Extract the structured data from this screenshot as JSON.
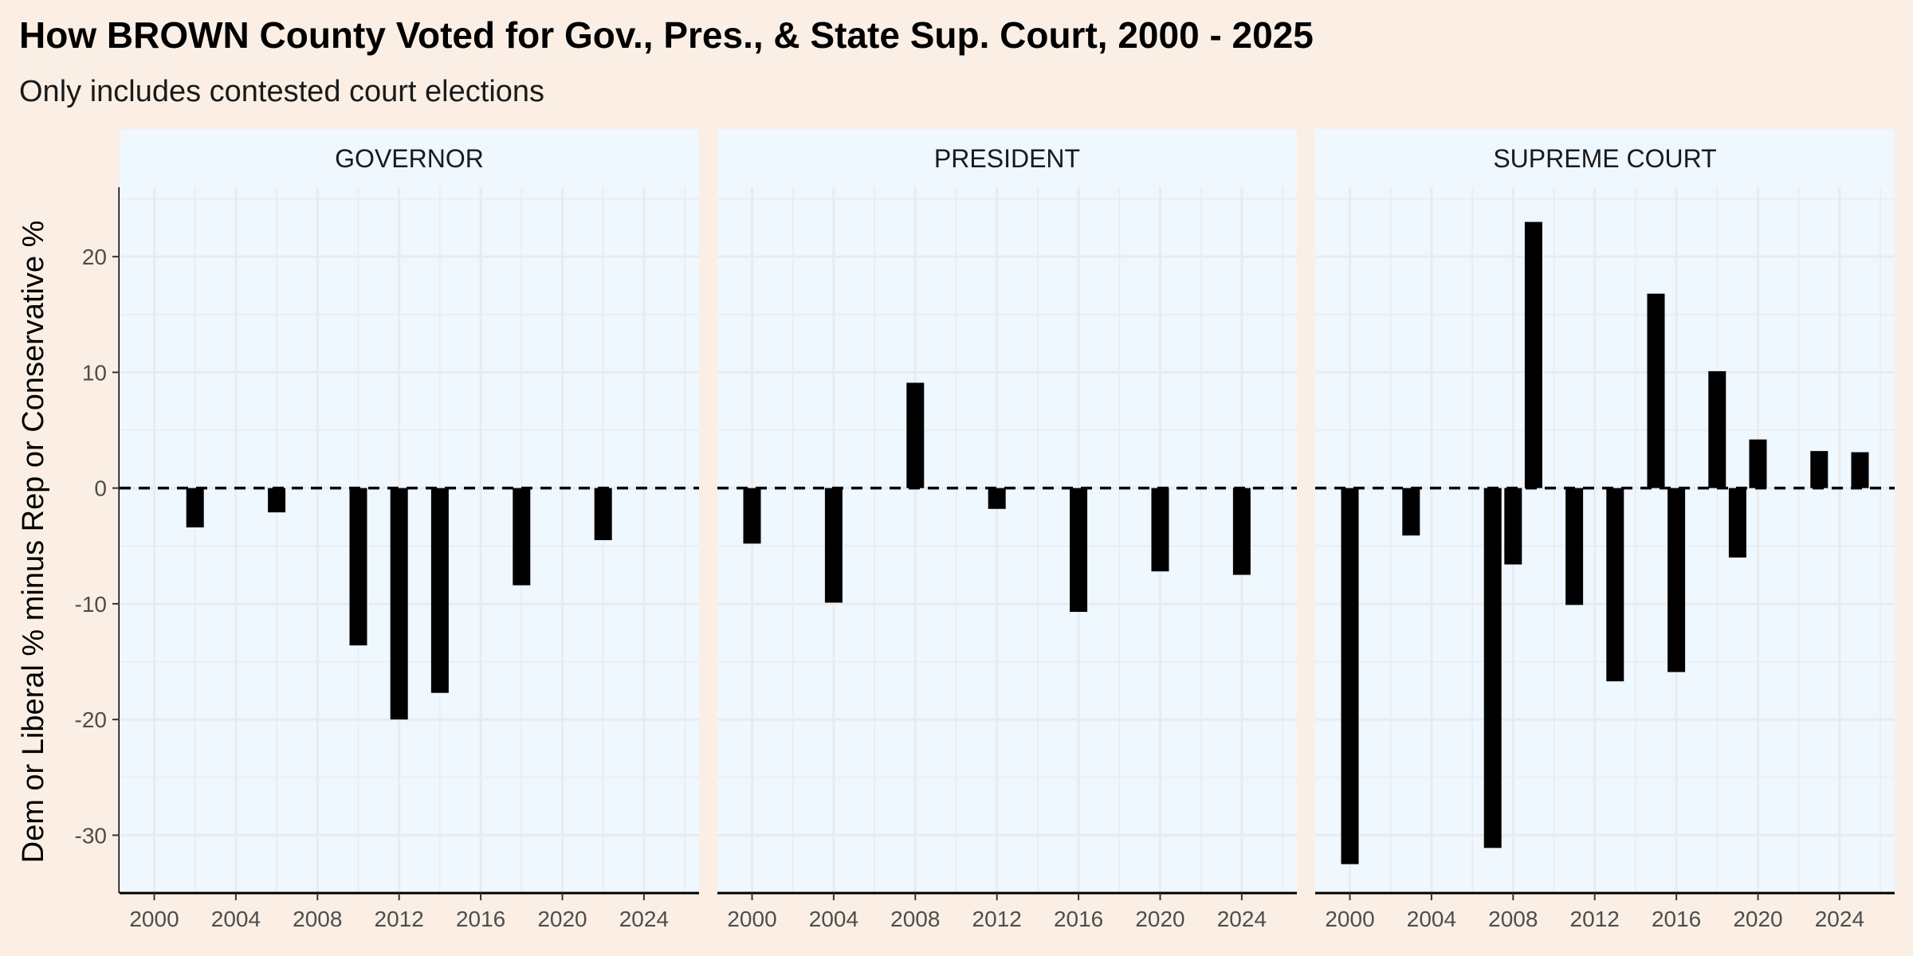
{
  "title": "How BROWN County Voted for Gov., Pres., & State Sup. Court, 2000 - 2025",
  "subtitle": "Only includes contested court elections",
  "colors": {
    "background": "#fbefe5",
    "panel": "#eff7ff",
    "strip": "#eff7ff",
    "grid": "#ebebeb",
    "bar": "#000000",
    "zero_line": "#000000"
  },
  "chart_data": {
    "type": "bar",
    "ylabel": "Dem or Liberal % minus Rep or Conservative %",
    "xlabel": "",
    "ylim": [
      -35,
      26
    ],
    "xlim": [
      1998.3,
      2026.7
    ],
    "x_ticks": [
      2000,
      2004,
      2008,
      2012,
      2016,
      2020,
      2024
    ],
    "y_ticks": [
      -30,
      -20,
      -10,
      0,
      10,
      20
    ],
    "zero_line": "dashed",
    "grid": true,
    "legend": "none",
    "panels": [
      {
        "name": "GOVERNOR",
        "x": [
          2002,
          2006,
          2010,
          2012,
          2014,
          2018,
          2022
        ],
        "values": [
          -3.4,
          -2.1,
          -13.6,
          -20.0,
          -17.7,
          -8.4,
          -4.5
        ]
      },
      {
        "name": "PRESIDENT",
        "x": [
          2000,
          2004,
          2008,
          2012,
          2016,
          2020,
          2024
        ],
        "values": [
          -4.8,
          -9.9,
          9.1,
          -1.8,
          -10.7,
          -7.2,
          -7.5
        ]
      },
      {
        "name": "SUPREME COURT",
        "x": [
          2000,
          2003,
          2007,
          2008,
          2009,
          2011,
          2013,
          2015,
          2016,
          2018,
          2019,
          2020,
          2023,
          2025
        ],
        "values": [
          -32.5,
          -4.1,
          -31.1,
          -6.6,
          23.0,
          -10.1,
          -16.7,
          16.8,
          -15.9,
          10.1,
          -6.0,
          4.2,
          3.2,
          3.1
        ]
      }
    ]
  }
}
